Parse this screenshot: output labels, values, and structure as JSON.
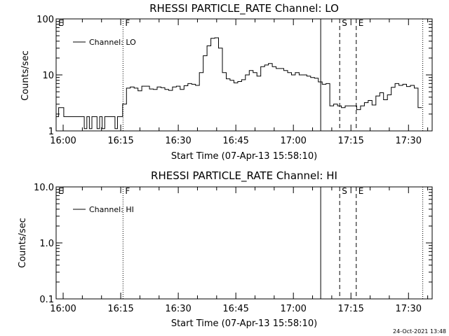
{
  "footer": {
    "timestamp": "24-Oct-2021 13:48"
  },
  "chart_data": [
    {
      "type": "line",
      "title": "RHESSI PARTICLE_RATE Channel: LO",
      "xlabel": "Start Time (07-Apr-13 15:58:10)",
      "ylabel": "Counts/sec",
      "yscale": "log",
      "ylim": [
        1,
        100
      ],
      "xlim": [
        "15:58:10",
        "17:36:10"
      ],
      "yticks": [
        "1",
        "10",
        "100"
      ],
      "xticks": [
        "16:00",
        "16:15",
        "16:30",
        "16:45",
        "17:00",
        "17:15",
        "17:30"
      ],
      "grid": false,
      "legend": {
        "placement": "top-left",
        "entries": [
          "Channel: LO"
        ]
      },
      "series": [
        {
          "name": "Channel: LO",
          "x": [
            "15:58:10",
            "15:58:50",
            "15:59:30",
            "16:00:10",
            "16:00:50",
            "16:01:30",
            "16:02:10",
            "16:02:50",
            "16:03:30",
            "16:04:10",
            "16:04:50",
            "16:05:30",
            "16:06:10",
            "16:06:50",
            "16:07:30",
            "16:08:10",
            "16:08:50",
            "16:09:30",
            "16:10:10",
            "16:10:50",
            "16:11:30",
            "16:12:10",
            "16:12:50",
            "16:13:30",
            "16:14:10",
            "16:14:50",
            "16:15:30",
            "16:16:30",
            "16:17:30",
            "16:18:30",
            "16:19:30",
            "16:20:30",
            "16:21:30",
            "16:22:30",
            "16:23:30",
            "16:24:30",
            "16:25:30",
            "16:26:30",
            "16:27:30",
            "16:28:30",
            "16:29:30",
            "16:30:30",
            "16:31:30",
            "16:32:30",
            "16:33:30",
            "16:34:30",
            "16:35:30",
            "16:36:30",
            "16:37:30",
            "16:38:30",
            "16:39:30",
            "16:40:30",
            "16:41:30",
            "16:42:30",
            "16:43:30",
            "16:44:30",
            "16:45:30",
            "16:46:30",
            "16:47:30",
            "16:48:30",
            "16:49:30",
            "16:50:30",
            "16:51:30",
            "16:52:30",
            "16:53:30",
            "16:54:30",
            "16:55:30",
            "16:56:30",
            "16:57:30",
            "16:58:30",
            "16:59:30",
            "17:00:30",
            "17:01:30",
            "17:02:30",
            "17:03:30",
            "17:04:30",
            "17:05:30",
            "17:06:30",
            "17:07:30",
            "17:08:30",
            "17:09:30",
            "17:10:30",
            "17:11:30",
            "17:12:30",
            "17:13:30",
            "17:14:30",
            "17:15:30",
            "17:16:30",
            "17:17:30",
            "17:18:30",
            "17:19:30",
            "17:20:30",
            "17:21:30",
            "17:22:30",
            "17:23:30",
            "17:24:30",
            "17:25:30",
            "17:26:30",
            "17:27:30",
            "17:28:30",
            "17:29:30",
            "17:30:30",
            "17:31:30",
            "17:32:30"
          ],
          "values": [
            1.8,
            2.6,
            2.6,
            1.8,
            1.8,
            1.8,
            1.8,
            1.8,
            1.8,
            1.8,
            1.8,
            1.1,
            1.8,
            1.1,
            1.8,
            1.8,
            1.1,
            1.8,
            1.1,
            1.8,
            1.8,
            1.8,
            1.8,
            1.1,
            1.8,
            1.8,
            3.0,
            5.8,
            6.1,
            5.8,
            5.2,
            6.3,
            6.3,
            5.6,
            5.5,
            6.1,
            5.9,
            5.5,
            5.3,
            6.1,
            6.3,
            5.5,
            6.4,
            7.0,
            6.8,
            6.5,
            11,
            22,
            33,
            45,
            46,
            30,
            11,
            8.5,
            8.0,
            7.2,
            7.6,
            8.2,
            10,
            12,
            11,
            9.5,
            14,
            15,
            16,
            14,
            13,
            13,
            12,
            11,
            10,
            11,
            10,
            10,
            9.5,
            9.0,
            8.7,
            7.5,
            6.8,
            7.0,
            2.8,
            3.0,
            2.8,
            2.6,
            2.8,
            2.8,
            2.8,
            2.4,
            2.8,
            3.2,
            3.5,
            2.9,
            4.2,
            4.8,
            3.6,
            4.4,
            6.0,
            7.0,
            6.5,
            6.8,
            6.2,
            6.5,
            5.8,
            2.6
          ]
        }
      ],
      "markers": [
        {
          "label": "E",
          "x": "15:58:10",
          "style": "dotted"
        },
        {
          "label": "F",
          "x": "16:15:36",
          "style": "dotted"
        },
        {
          "label": "",
          "x": "17:07:07",
          "style": "solid"
        },
        {
          "label": "S",
          "x": "17:12:04",
          "style": "dashed"
        },
        {
          "label": "E",
          "x": "17:16:23",
          "style": "dashed"
        },
        {
          "label": "",
          "x": "17:33:43",
          "style": "dotted"
        }
      ]
    },
    {
      "type": "line",
      "title": "RHESSI PARTICLE_RATE Channel: HI",
      "xlabel": "Start Time (07-Apr-13 15:58:10)",
      "ylabel": "Counts/sec",
      "yscale": "log",
      "ylim": [
        0.1,
        10
      ],
      "xlim": [
        "15:58:10",
        "17:36:10"
      ],
      "yticks": [
        "0.1",
        "1.0",
        "10.0"
      ],
      "xticks": [
        "16:00",
        "16:15",
        "16:30",
        "16:45",
        "17:00",
        "17:15",
        "17:30"
      ],
      "grid": false,
      "legend": {
        "placement": "top-left",
        "entries": [
          "Channel: HI"
        ]
      },
      "series": [
        {
          "name": "Channel: HI",
          "x": [],
          "values": []
        }
      ],
      "markers": [
        {
          "label": "E",
          "x": "15:58:10",
          "style": "dotted"
        },
        {
          "label": "F",
          "x": "16:15:36",
          "style": "dotted"
        },
        {
          "label": "",
          "x": "17:07:07",
          "style": "solid"
        },
        {
          "label": "S",
          "x": "17:12:04",
          "style": "dashed"
        },
        {
          "label": "E",
          "x": "17:16:23",
          "style": "dashed"
        },
        {
          "label": "",
          "x": "17:33:43",
          "style": "dotted"
        }
      ]
    }
  ]
}
